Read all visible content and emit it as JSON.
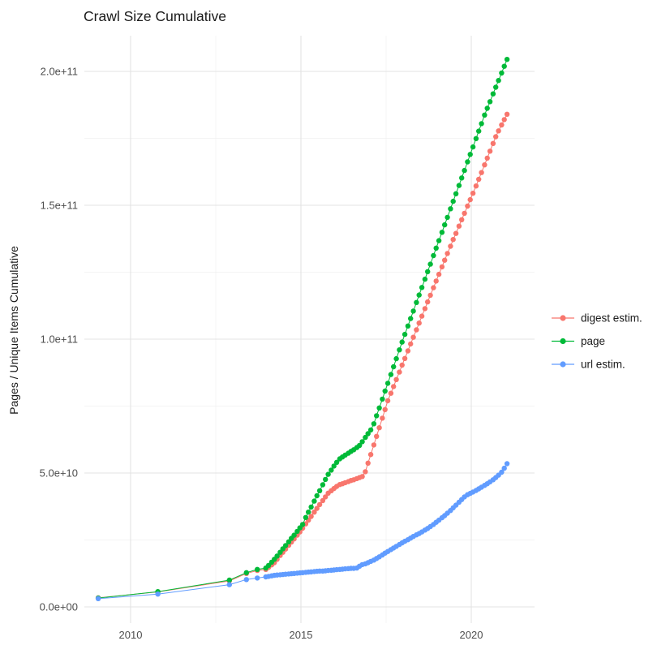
{
  "title": "Crawl Size Cumulative",
  "chart_data": {
    "type": "scatter",
    "title": "Crawl Size Cumulative",
    "xlabel": "",
    "ylabel": "Pages / Unique Items Cumulative",
    "y_unit": "pages, value in 1e9 (billions)",
    "x_unit": "calendar year (decimal)",
    "grid": true,
    "legend_position": "right",
    "x_ticks": [
      {
        "label": "2010",
        "value": 2010
      },
      {
        "label": "2015",
        "value": 2015
      },
      {
        "label": "2020",
        "value": 2020
      }
    ],
    "x_minor": [
      2012.5,
      2017.5
    ],
    "y_ticks": [
      {
        "label": "0.0e+00",
        "value": 0
      },
      {
        "label": "5.0e+10",
        "value": 50
      },
      {
        "label": "1.0e+11",
        "value": 100
      },
      {
        "label": "1.5e+11",
        "value": 150
      },
      {
        "label": "2.0e+11",
        "value": 200
      }
    ],
    "y_minor": [
      25,
      75,
      125,
      175
    ],
    "xlim": [
      2008.6,
      2021.9
    ],
    "ylim": [
      -6,
      213
    ],
    "series": [
      {
        "name": "digest estim.",
        "color": "#F8766D",
        "points": [
          [
            2009.05,
            3.4
          ],
          [
            2010.8,
            5.6
          ],
          [
            2012.9,
            9.7
          ],
          [
            2013.4,
            12.5
          ],
          [
            2013.72,
            13.6
          ],
          [
            2013.97,
            14.0
          ],
          [
            2014.05,
            14.8
          ],
          [
            2014.14,
            15.7
          ],
          [
            2014.22,
            16.5
          ],
          [
            2014.3,
            17.8
          ],
          [
            2014.39,
            19.2
          ],
          [
            2014.47,
            20.4
          ],
          [
            2014.55,
            21.6
          ],
          [
            2014.64,
            23.0
          ],
          [
            2014.72,
            24.2
          ],
          [
            2014.8,
            25.4
          ],
          [
            2014.89,
            26.8
          ],
          [
            2014.97,
            28.0
          ],
          [
            2015.05,
            29.4
          ],
          [
            2015.14,
            31.0
          ],
          [
            2015.22,
            32.4
          ],
          [
            2015.3,
            33.8
          ],
          [
            2015.39,
            35.4
          ],
          [
            2015.47,
            36.8
          ],
          [
            2015.55,
            38.2
          ],
          [
            2015.64,
            39.7
          ],
          [
            2015.72,
            41.1
          ],
          [
            2015.8,
            42.5
          ],
          [
            2015.89,
            43.4
          ],
          [
            2015.97,
            44.2
          ],
          [
            2016.05,
            45.0
          ],
          [
            2016.14,
            45.7
          ],
          [
            2016.22,
            46.0
          ],
          [
            2016.3,
            46.4
          ],
          [
            2016.39,
            46.8
          ],
          [
            2016.47,
            47.2
          ],
          [
            2016.55,
            47.5
          ],
          [
            2016.64,
            47.9
          ],
          [
            2016.72,
            48.3
          ],
          [
            2016.8,
            48.7
          ],
          [
            2016.89,
            50.5
          ],
          [
            2016.97,
            53.7
          ],
          [
            2017.05,
            56.9
          ],
          [
            2017.14,
            60.5
          ],
          [
            2017.22,
            63.7
          ],
          [
            2017.3,
            66.9
          ],
          [
            2017.39,
            70.5
          ],
          [
            2017.47,
            73.7
          ],
          [
            2017.55,
            77.0
          ],
          [
            2017.64,
            79.8
          ],
          [
            2017.72,
            82.3
          ],
          [
            2017.8,
            84.9
          ],
          [
            2017.89,
            87.7
          ],
          [
            2017.97,
            90.3
          ],
          [
            2018.05,
            92.8
          ],
          [
            2018.14,
            95.6
          ],
          [
            2018.22,
            98.2
          ],
          [
            2018.3,
            100.7
          ],
          [
            2018.39,
            103.5
          ],
          [
            2018.47,
            106.0
          ],
          [
            2018.55,
            108.6
          ],
          [
            2018.64,
            111.4
          ],
          [
            2018.72,
            113.9
          ],
          [
            2018.8,
            116.4
          ],
          [
            2018.89,
            119.2
          ],
          [
            2018.97,
            121.7
          ],
          [
            2019.05,
            124.2
          ],
          [
            2019.14,
            127.0
          ],
          [
            2019.22,
            129.5
          ],
          [
            2019.3,
            132.0
          ],
          [
            2019.39,
            134.7
          ],
          [
            2019.47,
            137.2
          ],
          [
            2019.55,
            139.5
          ],
          [
            2019.64,
            142.2
          ],
          [
            2019.72,
            144.6
          ],
          [
            2019.8,
            147.0
          ],
          [
            2019.89,
            149.7
          ],
          [
            2019.97,
            152.1
          ],
          [
            2020.05,
            154.5
          ],
          [
            2020.14,
            157.2
          ],
          [
            2020.22,
            159.7
          ],
          [
            2020.3,
            162.2
          ],
          [
            2020.39,
            165.1
          ],
          [
            2020.47,
            167.6
          ],
          [
            2020.55,
            170.2
          ],
          [
            2020.64,
            173.1
          ],
          [
            2020.72,
            175.6
          ],
          [
            2020.8,
            177.8
          ],
          [
            2020.89,
            180.0
          ],
          [
            2020.97,
            182.0
          ],
          [
            2021.05,
            184.0
          ]
        ]
      },
      {
        "name": "page",
        "color": "#00BA38",
        "points": [
          [
            2009.05,
            3.3
          ],
          [
            2010.8,
            5.7
          ],
          [
            2012.9,
            10.0
          ],
          [
            2013.4,
            12.8
          ],
          [
            2013.72,
            14.0
          ],
          [
            2013.97,
            14.5
          ],
          [
            2014.05,
            15.5
          ],
          [
            2014.14,
            16.7
          ],
          [
            2014.22,
            17.8
          ],
          [
            2014.3,
            19.0
          ],
          [
            2014.39,
            20.4
          ],
          [
            2014.47,
            21.7
          ],
          [
            2014.55,
            22.9
          ],
          [
            2014.64,
            24.3
          ],
          [
            2014.72,
            25.6
          ],
          [
            2014.8,
            26.8
          ],
          [
            2014.89,
            28.2
          ],
          [
            2014.97,
            29.5
          ],
          [
            2015.05,
            30.8
          ],
          [
            2015.14,
            33.4
          ],
          [
            2015.22,
            35.4
          ],
          [
            2015.3,
            37.3
          ],
          [
            2015.39,
            39.5
          ],
          [
            2015.47,
            41.5
          ],
          [
            2015.55,
            43.4
          ],
          [
            2015.64,
            45.6
          ],
          [
            2015.72,
            47.6
          ],
          [
            2015.8,
            49.5
          ],
          [
            2015.89,
            51.1
          ],
          [
            2015.97,
            52.6
          ],
          [
            2016.05,
            54.0
          ],
          [
            2016.14,
            55.3
          ],
          [
            2016.22,
            56.0
          ],
          [
            2016.3,
            56.7
          ],
          [
            2016.39,
            57.4
          ],
          [
            2016.47,
            58.1
          ],
          [
            2016.55,
            58.7
          ],
          [
            2016.64,
            59.5
          ],
          [
            2016.72,
            60.3
          ],
          [
            2016.8,
            61.7
          ],
          [
            2016.89,
            63.3
          ],
          [
            2016.97,
            64.7
          ],
          [
            2017.05,
            66.1
          ],
          [
            2017.14,
            68.4
          ],
          [
            2017.22,
            71.4
          ],
          [
            2017.3,
            74.3
          ],
          [
            2017.39,
            77.6
          ],
          [
            2017.47,
            80.6
          ],
          [
            2017.55,
            83.5
          ],
          [
            2017.64,
            86.8
          ],
          [
            2017.72,
            89.7
          ],
          [
            2017.8,
            92.7
          ],
          [
            2017.89,
            96.0
          ],
          [
            2017.97,
            98.9
          ],
          [
            2018.05,
            101.8
          ],
          [
            2018.14,
            104.9
          ],
          [
            2018.22,
            107.7
          ],
          [
            2018.3,
            110.5
          ],
          [
            2018.39,
            113.7
          ],
          [
            2018.47,
            116.5
          ],
          [
            2018.55,
            119.3
          ],
          [
            2018.64,
            122.4
          ],
          [
            2018.72,
            125.2
          ],
          [
            2018.8,
            128.0
          ],
          [
            2018.89,
            131.2
          ],
          [
            2018.97,
            134.0
          ],
          [
            2019.05,
            136.8
          ],
          [
            2019.14,
            139.9
          ],
          [
            2019.22,
            142.7
          ],
          [
            2019.3,
            145.5
          ],
          [
            2019.39,
            148.7
          ],
          [
            2019.47,
            151.5
          ],
          [
            2019.55,
            154.3
          ],
          [
            2019.64,
            157.4
          ],
          [
            2019.72,
            160.2
          ],
          [
            2019.8,
            163.0
          ],
          [
            2019.89,
            166.2
          ],
          [
            2019.97,
            169.0
          ],
          [
            2020.05,
            171.8
          ],
          [
            2020.14,
            174.9
          ],
          [
            2020.22,
            177.7
          ],
          [
            2020.3,
            180.5
          ],
          [
            2020.39,
            183.7
          ],
          [
            2020.47,
            186.2
          ],
          [
            2020.55,
            188.7
          ],
          [
            2020.64,
            191.6
          ],
          [
            2020.72,
            194.1
          ],
          [
            2020.8,
            196.6
          ],
          [
            2020.89,
            199.4
          ],
          [
            2020.97,
            201.9
          ],
          [
            2021.05,
            204.5
          ]
        ]
      },
      {
        "name": "url estim.",
        "color": "#619CFF",
        "points": [
          [
            2009.05,
            3.1
          ],
          [
            2010.8,
            4.8
          ],
          [
            2012.9,
            8.3
          ],
          [
            2013.4,
            10.2
          ],
          [
            2013.72,
            10.8
          ],
          [
            2013.97,
            11.2
          ],
          [
            2014.05,
            11.4
          ],
          [
            2014.14,
            11.6
          ],
          [
            2014.22,
            11.8
          ],
          [
            2014.3,
            11.9
          ],
          [
            2014.39,
            12.0
          ],
          [
            2014.47,
            12.1
          ],
          [
            2014.55,
            12.2
          ],
          [
            2014.64,
            12.3
          ],
          [
            2014.72,
            12.4
          ],
          [
            2014.8,
            12.5
          ],
          [
            2014.89,
            12.6
          ],
          [
            2014.97,
            12.7
          ],
          [
            2015.05,
            12.8
          ],
          [
            2015.14,
            12.9
          ],
          [
            2015.22,
            13.0
          ],
          [
            2015.3,
            13.1
          ],
          [
            2015.39,
            13.2
          ],
          [
            2015.47,
            13.3
          ],
          [
            2015.55,
            13.4
          ],
          [
            2015.64,
            13.4
          ],
          [
            2015.72,
            13.5
          ],
          [
            2015.8,
            13.6
          ],
          [
            2015.89,
            13.7
          ],
          [
            2015.97,
            13.8
          ],
          [
            2016.05,
            13.9
          ],
          [
            2016.14,
            14.0
          ],
          [
            2016.22,
            14.1
          ],
          [
            2016.3,
            14.2
          ],
          [
            2016.39,
            14.3
          ],
          [
            2016.47,
            14.4
          ],
          [
            2016.55,
            14.4
          ],
          [
            2016.64,
            14.5
          ],
          [
            2016.72,
            15.2
          ],
          [
            2016.8,
            15.8
          ],
          [
            2016.89,
            16.1
          ],
          [
            2016.97,
            16.5
          ],
          [
            2017.05,
            17.0
          ],
          [
            2017.14,
            17.5
          ],
          [
            2017.22,
            18.1
          ],
          [
            2017.3,
            18.7
          ],
          [
            2017.39,
            19.4
          ],
          [
            2017.47,
            20.1
          ],
          [
            2017.55,
            20.7
          ],
          [
            2017.64,
            21.4
          ],
          [
            2017.72,
            22.0
          ],
          [
            2017.8,
            22.6
          ],
          [
            2017.89,
            23.3
          ],
          [
            2017.97,
            23.9
          ],
          [
            2018.05,
            24.5
          ],
          [
            2018.14,
            25.1
          ],
          [
            2018.22,
            25.7
          ],
          [
            2018.3,
            26.3
          ],
          [
            2018.39,
            26.9
          ],
          [
            2018.47,
            27.4
          ],
          [
            2018.55,
            28.0
          ],
          [
            2018.64,
            28.7
          ],
          [
            2018.72,
            29.3
          ],
          [
            2018.8,
            30.0
          ],
          [
            2018.89,
            30.8
          ],
          [
            2018.97,
            31.6
          ],
          [
            2019.05,
            32.4
          ],
          [
            2019.14,
            33.3
          ],
          [
            2019.22,
            34.1
          ],
          [
            2019.3,
            35.0
          ],
          [
            2019.39,
            36.0
          ],
          [
            2019.47,
            37.0
          ],
          [
            2019.55,
            38.0
          ],
          [
            2019.64,
            39.1
          ],
          [
            2019.72,
            40.1
          ],
          [
            2019.8,
            41.1
          ],
          [
            2019.89,
            41.9
          ],
          [
            2019.97,
            42.4
          ],
          [
            2020.05,
            42.9
          ],
          [
            2020.14,
            43.5
          ],
          [
            2020.22,
            44.1
          ],
          [
            2020.3,
            44.7
          ],
          [
            2020.39,
            45.4
          ],
          [
            2020.47,
            46.0
          ],
          [
            2020.55,
            46.7
          ],
          [
            2020.64,
            47.5
          ],
          [
            2020.72,
            48.3
          ],
          [
            2020.8,
            49.2
          ],
          [
            2020.89,
            50.3
          ],
          [
            2020.97,
            51.8
          ],
          [
            2021.05,
            53.5
          ]
        ]
      }
    ]
  },
  "style": {
    "background": "#ffffff",
    "grid_major_color": "#e3e3e3",
    "grid_minor_color": "#f0f0f0",
    "tick_text_color": "#4d4d4d",
    "text_color": "#1a1a1a"
  }
}
